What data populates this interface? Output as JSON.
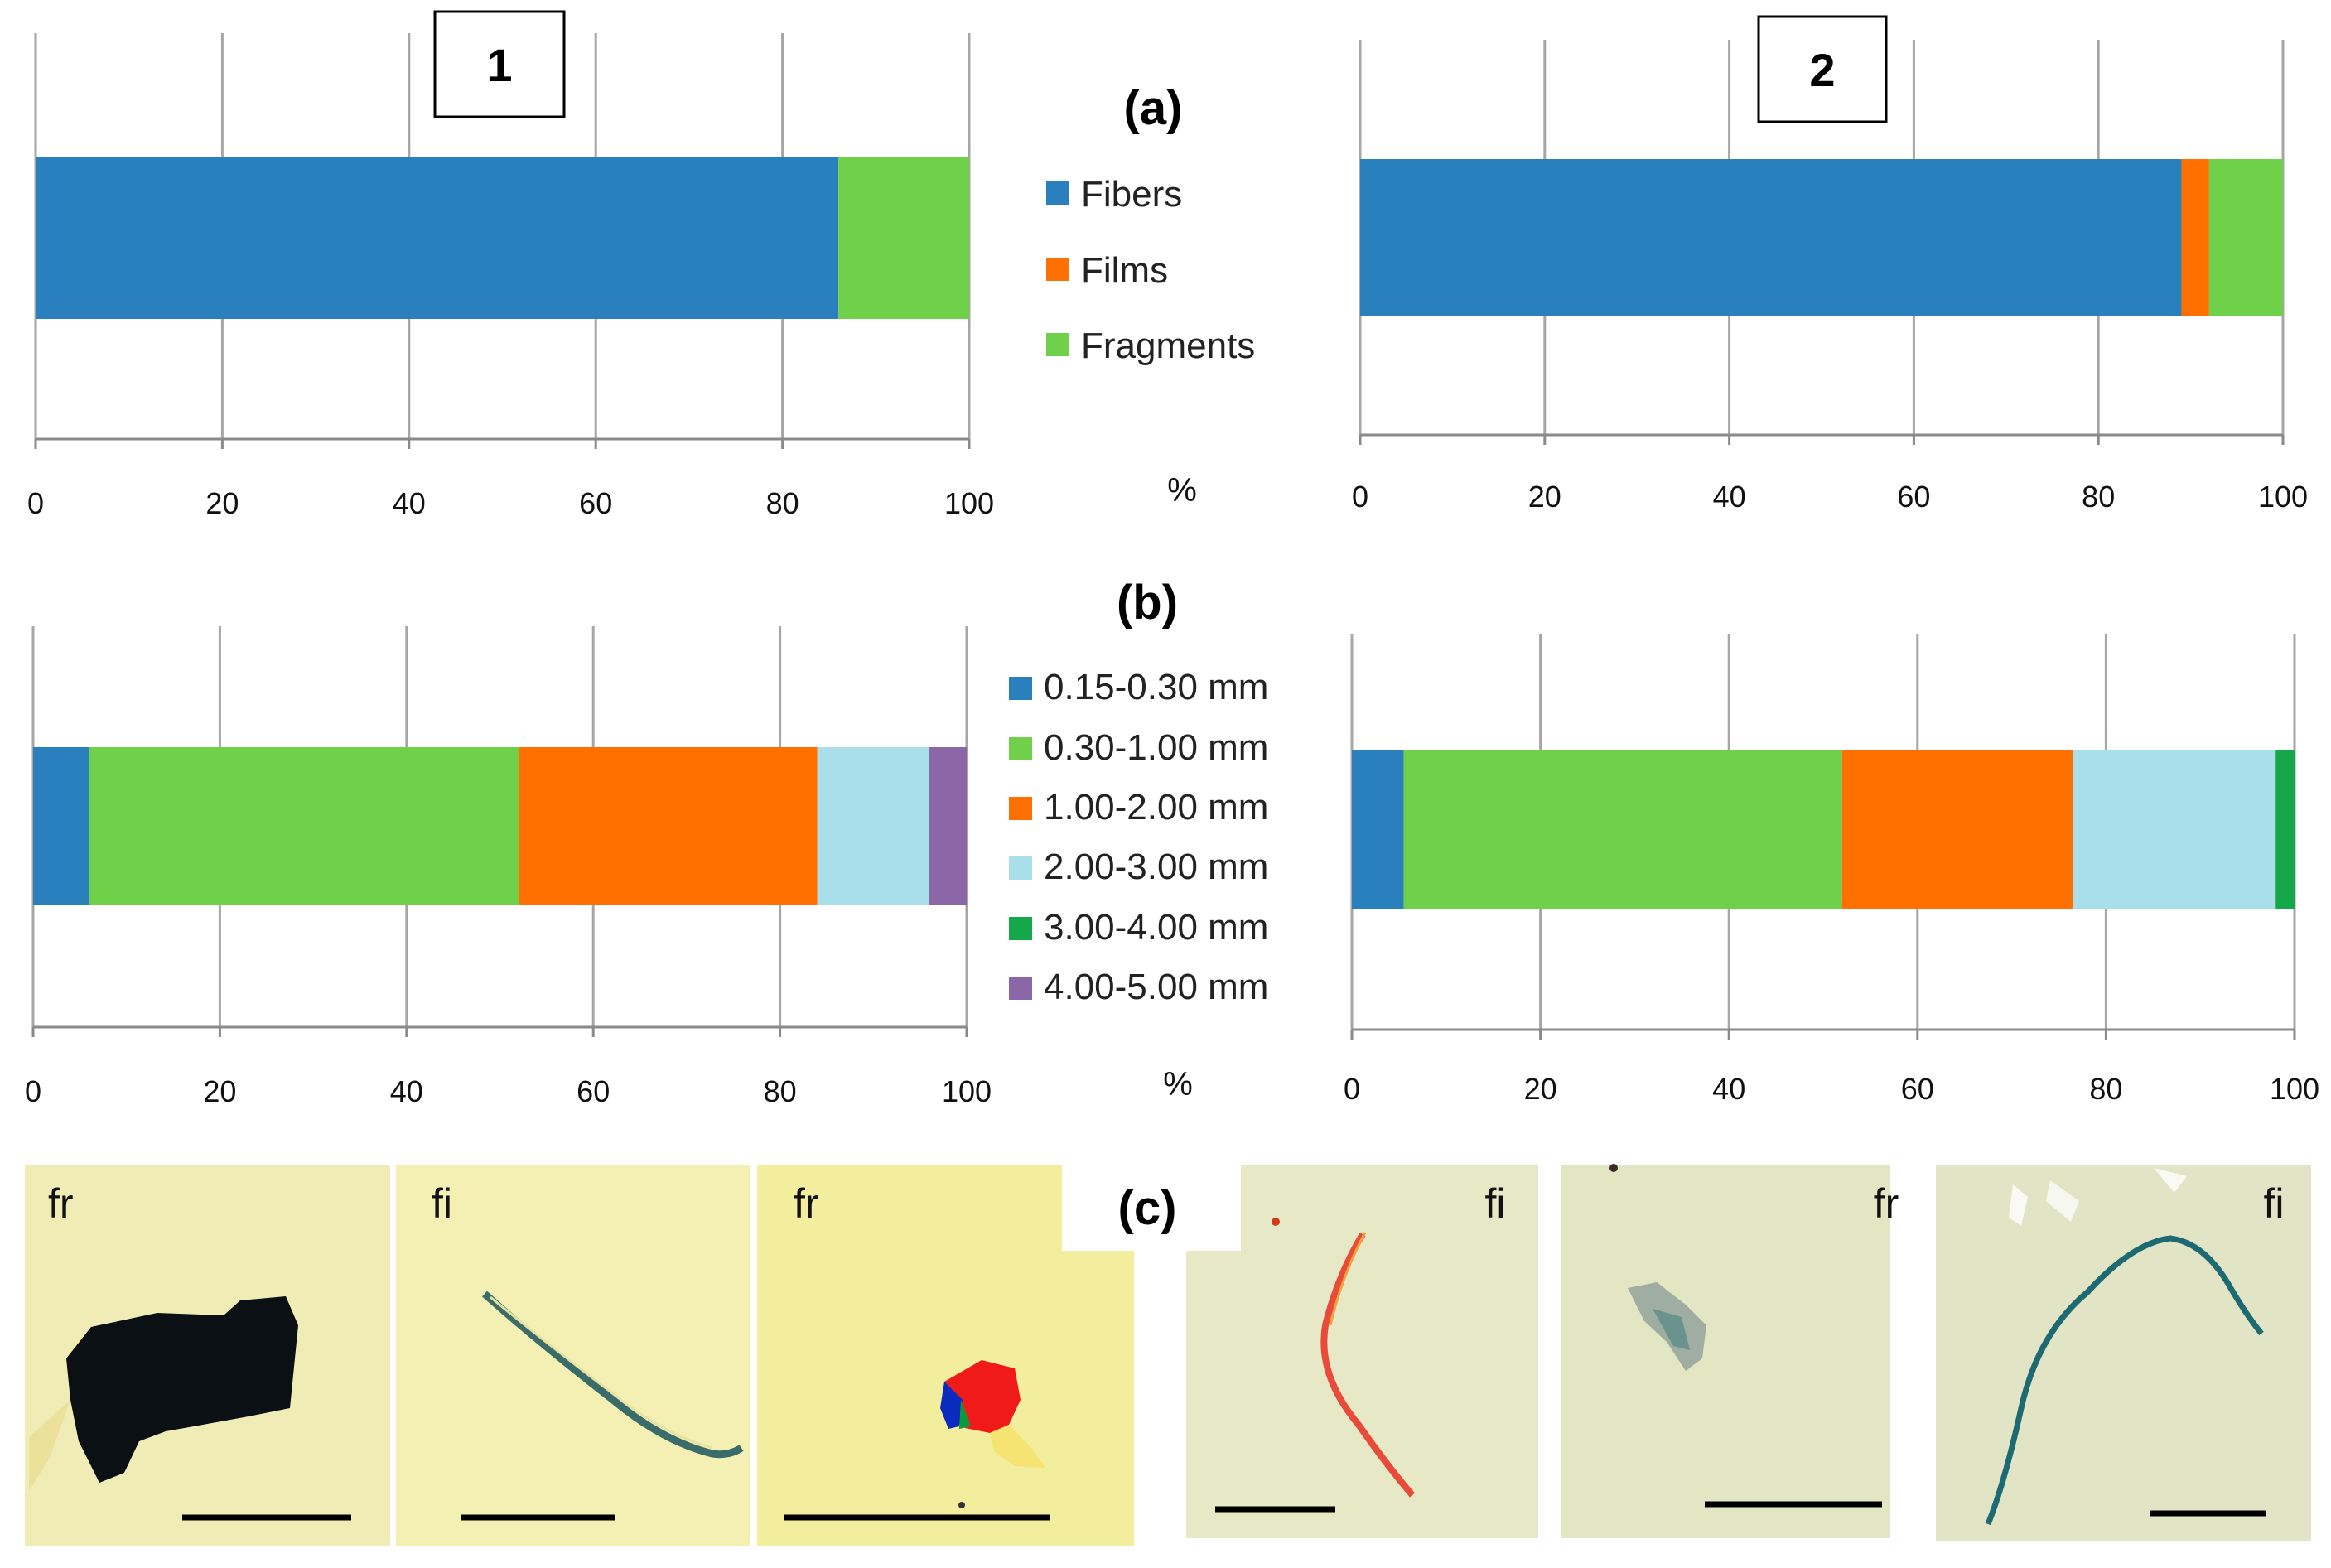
{
  "figure": {
    "panel_labels": {
      "a": "(a)",
      "b": "(b)",
      "c": "(c)"
    },
    "site_labels": [
      "1",
      "2"
    ],
    "axis_unit": "%",
    "colors": {
      "fibers": "#2a7fbd",
      "films": "#ff7000",
      "fragments": "#6fd04a",
      "size_015_030": "#2a7fbd",
      "size_030_100": "#6fd04a",
      "size_100_200": "#ff7000",
      "size_200_300": "#a9dfe9",
      "size_300_400": "#14a84a",
      "size_400_500": "#8c67a8"
    }
  },
  "chart_data": [
    {
      "id": "a1",
      "type": "bar",
      "orientation": "horizontal",
      "stacked": true,
      "title": "1",
      "xlabel": "%",
      "xlim": [
        0,
        100
      ],
      "xticks": [
        "0",
        "20",
        "40",
        "60",
        "80",
        "100"
      ],
      "series": [
        {
          "name": "Fibers",
          "color": "#2a7fbd",
          "value": 86
        },
        {
          "name": "Films",
          "color": "#ff7000",
          "value": 0
        },
        {
          "name": "Fragments",
          "color": "#6fd04a",
          "value": 14
        }
      ]
    },
    {
      "id": "a2",
      "type": "bar",
      "orientation": "horizontal",
      "stacked": true,
      "title": "2",
      "xlabel": "%",
      "xlim": [
        0,
        100
      ],
      "xticks": [
        "0",
        "20",
        "40",
        "60",
        "80",
        "100"
      ],
      "series": [
        {
          "name": "Fibers",
          "color": "#2a7fbd",
          "value": 89
        },
        {
          "name": "Films",
          "color": "#ff7000",
          "value": 3
        },
        {
          "name": "Fragments",
          "color": "#6fd04a",
          "value": 8
        }
      ]
    },
    {
      "id": "b1",
      "type": "bar",
      "orientation": "horizontal",
      "stacked": true,
      "title": "",
      "xlabel": "%",
      "xlim": [
        0,
        100
      ],
      "xticks": [
        "0",
        "20",
        "40",
        "60",
        "80",
        "100"
      ],
      "series": [
        {
          "name": "0.15-0.30 mm",
          "color": "#2a7fbd",
          "value": 6
        },
        {
          "name": "0.30-1.00 mm",
          "color": "#6fd04a",
          "value": 46
        },
        {
          "name": "1.00-2.00 mm",
          "color": "#ff7000",
          "value": 32
        },
        {
          "name": "2.00-3.00 mm",
          "color": "#a9dfe9",
          "value": 12
        },
        {
          "name": "3.00-4.00 mm",
          "color": "#14a84a",
          "value": 0
        },
        {
          "name": "4.00-5.00 mm",
          "color": "#8c67a8",
          "value": 4
        }
      ]
    },
    {
      "id": "b2",
      "type": "bar",
      "orientation": "horizontal",
      "stacked": true,
      "title": "",
      "xlabel": "",
      "xlim": [
        0,
        100
      ],
      "xticks": [
        "0",
        "20",
        "40",
        "60",
        "80",
        "100"
      ],
      "series": [
        {
          "name": "0.15-0.30 mm",
          "color": "#2a7fbd",
          "value": 5.5
        },
        {
          "name": "0.30-1.00 mm",
          "color": "#6fd04a",
          "value": 46.5
        },
        {
          "name": "1.00-2.00 mm",
          "color": "#ff7000",
          "value": 24.5
        },
        {
          "name": "2.00-3.00 mm",
          "color": "#a9dfe9",
          "value": 21.5
        },
        {
          "name": "3.00-4.00 mm",
          "color": "#14a84a",
          "value": 2
        },
        {
          "name": "4.00-5.00 mm",
          "color": "#8c67a8",
          "value": 0
        }
      ]
    }
  ],
  "legend_a": [
    "Fibers",
    "Films",
    "Fragments"
  ],
  "legend_b": [
    "0.15-0.30 mm",
    "0.30-1.00 mm",
    "1.00-2.00 mm",
    "2.00-3.00 mm",
    "3.00-4.00 mm",
    "4.00-5.00 mm"
  ],
  "photos": [
    {
      "label": "fr",
      "particle": "black fragment"
    },
    {
      "label": "fi",
      "particle": "blue fiber"
    },
    {
      "label": "fr",
      "particle": "multicolor fragment"
    },
    {
      "label": "fi",
      "particle": "red fiber"
    },
    {
      "label": "fr",
      "particle": "grey fragment"
    },
    {
      "label": "fi",
      "particle": "teal fiber"
    }
  ]
}
